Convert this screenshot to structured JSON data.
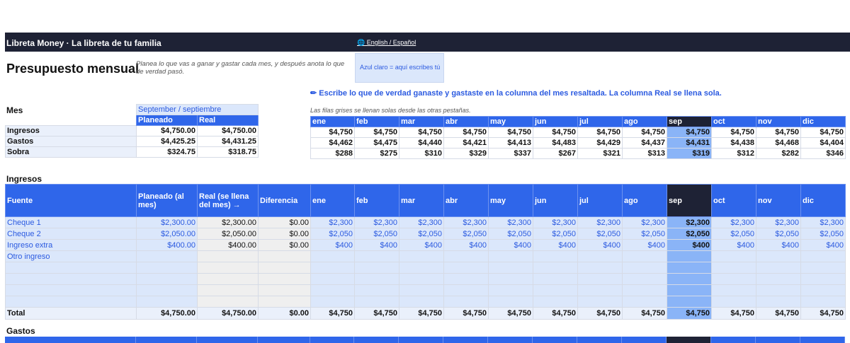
{
  "header": {
    "brand": "Libreta Money  ·  La libreta de tu familia",
    "lang_link": "🌐 English / Español"
  },
  "page": {
    "title": "Presupuesto mensual",
    "subtitle": "Planea lo que vas a ganar y gastar cada mes, y después anota lo que de verdad pasó.",
    "legend_note": "Azul claro = aquí escribes tú",
    "instruction": "✏ Escribe lo que de verdad ganaste y gastaste en la columna del mes resaltada. La columna Real se llena sola.",
    "grey_note": "Las filas grises se llenan solas desde las otras pestañas."
  },
  "months": [
    "ene",
    "feb",
    "mar",
    "abr",
    "may",
    "jun",
    "jul",
    "ago",
    "sep",
    "oct",
    "nov",
    "dic"
  ],
  "current_month_index": 8,
  "summary": {
    "mes_label": "Mes",
    "month_selected": "September / septiembre",
    "col_planned": "Planeado",
    "col_real": "Real",
    "rows": [
      {
        "label": "Ingresos",
        "planned": "$4,750.00",
        "real": "$4,750.00",
        "months": [
          "$4,750",
          "$4,750",
          "$4,750",
          "$4,750",
          "$4,750",
          "$4,750",
          "$4,750",
          "$4,750",
          "$4,750",
          "$4,750",
          "$4,750",
          "$4,750"
        ]
      },
      {
        "label": "Gastos",
        "planned": "$4,425.25",
        "real": "$4,431.25",
        "months": [
          "$4,462",
          "$4,475",
          "$4,440",
          "$4,421",
          "$4,413",
          "$4,483",
          "$4,429",
          "$4,437",
          "$4,431",
          "$4,438",
          "$4,468",
          "$4,404"
        ]
      },
      {
        "label": "Sobra",
        "planned": "$324.75",
        "real": "$318.75",
        "months": [
          "$288",
          "$275",
          "$310",
          "$329",
          "$337",
          "$267",
          "$321",
          "$313",
          "$319",
          "$312",
          "$282",
          "$346"
        ]
      }
    ]
  },
  "income": {
    "section_title": "Ingresos",
    "headers": {
      "source": "Fuente",
      "planned": "Planeado (al mes)",
      "real": "Real (se llena del mes) →",
      "diff": "Diferencia"
    },
    "rows": [
      {
        "source": "Cheque 1",
        "planned": "$2,300.00",
        "real": "$2,300.00",
        "diff": "$0.00",
        "months": [
          "$2,300",
          "$2,300",
          "$2,300",
          "$2,300",
          "$2,300",
          "$2,300",
          "$2,300",
          "$2,300",
          "$2,300",
          "$2,300",
          "$2,300",
          "$2,300"
        ]
      },
      {
        "source": "Cheque 2",
        "planned": "$2,050.00",
        "real": "$2,050.00",
        "diff": "$0.00",
        "months": [
          "$2,050",
          "$2,050",
          "$2,050",
          "$2,050",
          "$2,050",
          "$2,050",
          "$2,050",
          "$2,050",
          "$2,050",
          "$2,050",
          "$2,050",
          "$2,050"
        ]
      },
      {
        "source": "Ingreso extra",
        "planned": "$400.00",
        "real": "$400.00",
        "diff": "$0.00",
        "months": [
          "$400",
          "$400",
          "$400",
          "$400",
          "$400",
          "$400",
          "$400",
          "$400",
          "$400",
          "$400",
          "$400",
          "$400"
        ]
      },
      {
        "source": "Otro ingreso",
        "planned": "",
        "real": "",
        "diff": "",
        "months": [
          "",
          "",
          "",
          "",
          "",
          "",
          "",
          "",
          "",
          "",
          "",
          ""
        ]
      },
      {
        "source": "",
        "planned": "",
        "real": "",
        "diff": "",
        "months": [
          "",
          "",
          "",
          "",
          "",
          "",
          "",
          "",
          "",
          "",
          "",
          ""
        ]
      },
      {
        "source": "",
        "planned": "",
        "real": "",
        "diff": "",
        "months": [
          "",
          "",
          "",
          "",
          "",
          "",
          "",
          "",
          "",
          "",
          "",
          ""
        ]
      },
      {
        "source": "",
        "planned": "",
        "real": "",
        "diff": "",
        "months": [
          "",
          "",
          "",
          "",
          "",
          "",
          "",
          "",
          "",
          "",
          "",
          ""
        ]
      },
      {
        "source": "",
        "planned": "",
        "real": "",
        "diff": "",
        "months": [
          "",
          "",
          "",
          "",
          "",
          "",
          "",
          "",
          "",
          "",
          "",
          ""
        ]
      }
    ],
    "total": {
      "label": "Total",
      "planned": "$4,750.00",
      "real": "$4,750.00",
      "diff": "$0.00",
      "months": [
        "$4,750",
        "$4,750",
        "$4,750",
        "$4,750",
        "$4,750",
        "$4,750",
        "$4,750",
        "$4,750",
        "$4,750",
        "$4,750",
        "$4,750",
        "$4,750"
      ]
    }
  },
  "expenses": {
    "section_title": "Gastos"
  },
  "colors": {
    "header_blue": "#2f66ea",
    "dark_navy": "#1e2235",
    "input_light_blue": "#dbe7fb",
    "current_month": "#8ab4f7",
    "auto_grey": "#efefef"
  }
}
